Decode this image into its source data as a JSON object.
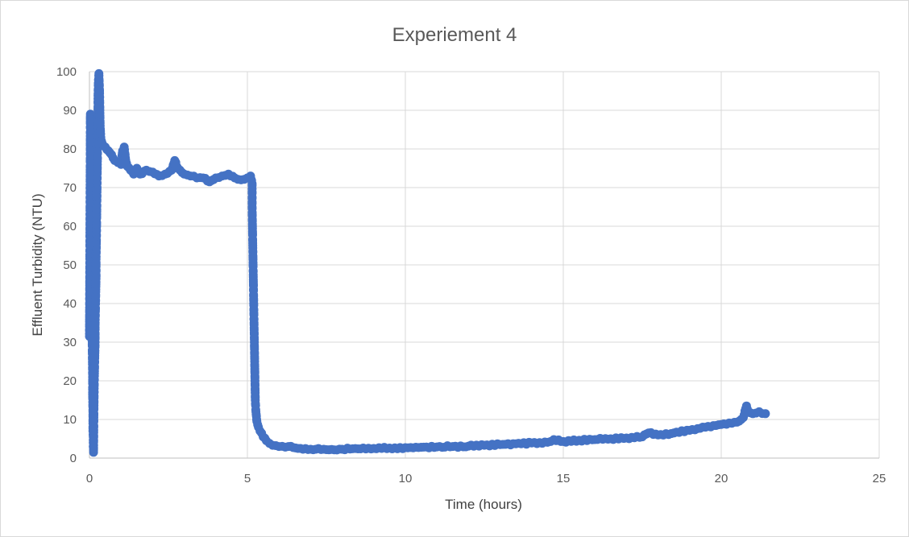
{
  "chart_data": {
    "type": "scatter",
    "title": "Experiement 4",
    "xlabel": "Time (hours)",
    "ylabel": "Effluent Turbidity (NTU)",
    "xlim": [
      0,
      25
    ],
    "ylim": [
      0,
      100
    ],
    "xticks": [
      0,
      5,
      10,
      15,
      20,
      25
    ],
    "yticks": [
      0,
      10,
      20,
      30,
      40,
      50,
      60,
      70,
      80,
      90,
      100
    ],
    "grid": true,
    "legend": "none",
    "marker_color": "#4472c4",
    "series": [
      {
        "points": [
          [
            0.0,
            31.5
          ],
          [
            0.03,
            89.0
          ],
          [
            0.04,
            68.5
          ],
          [
            0.05,
            53.5
          ],
          [
            0.06,
            45.5
          ],
          [
            0.07,
            39.0
          ],
          [
            0.08,
            33.5
          ],
          [
            0.09,
            27.5
          ],
          [
            0.1,
            21.0
          ],
          [
            0.1,
            16.5
          ],
          [
            0.11,
            12.0
          ],
          [
            0.11,
            7.0
          ],
          [
            0.12,
            5.5
          ],
          [
            0.12,
            4.0
          ],
          [
            0.12,
            3.0
          ],
          [
            0.13,
            2.0
          ],
          [
            0.13,
            1.5
          ],
          [
            0.14,
            10.5
          ],
          [
            0.15,
            18.0
          ],
          [
            0.16,
            22.5
          ],
          [
            0.17,
            26.5
          ],
          [
            0.18,
            30.0
          ],
          [
            0.18,
            34.5
          ],
          [
            0.19,
            38.5
          ],
          [
            0.2,
            43.0
          ],
          [
            0.21,
            47.0
          ],
          [
            0.21,
            51.5
          ],
          [
            0.22,
            56.0
          ],
          [
            0.23,
            62.5
          ],
          [
            0.24,
            69.5
          ],
          [
            0.25,
            76.0
          ],
          [
            0.26,
            82.5
          ],
          [
            0.27,
            88.0
          ],
          [
            0.27,
            93.0
          ],
          [
            0.28,
            97.0
          ],
          [
            0.3,
            99.5
          ],
          [
            0.32,
            95.0
          ],
          [
            0.33,
            90.0
          ],
          [
            0.34,
            86.0
          ],
          [
            0.36,
            83.0
          ],
          [
            0.4,
            81.5
          ],
          [
            0.5,
            80.5
          ],
          [
            0.6,
            79.5
          ],
          [
            0.7,
            78.5
          ],
          [
            0.8,
            77.0
          ],
          [
            0.9,
            76.5
          ],
          [
            1.0,
            76.0
          ],
          [
            1.05,
            79.5
          ],
          [
            1.1,
            80.5
          ],
          [
            1.15,
            77.0
          ],
          [
            1.2,
            75.5
          ],
          [
            1.3,
            74.5
          ],
          [
            1.4,
            73.5
          ],
          [
            1.5,
            75.0
          ],
          [
            1.6,
            73.5
          ],
          [
            1.8,
            74.5
          ],
          [
            2.0,
            74.0
          ],
          [
            2.2,
            73.0
          ],
          [
            2.4,
            73.5
          ],
          [
            2.6,
            74.5
          ],
          [
            2.7,
            77.0
          ],
          [
            2.8,
            75.0
          ],
          [
            3.0,
            73.5
          ],
          [
            3.2,
            73.0
          ],
          [
            3.4,
            72.5
          ],
          [
            3.6,
            72.5
          ],
          [
            3.8,
            71.5
          ],
          [
            4.0,
            72.5
          ],
          [
            4.2,
            73.0
          ],
          [
            4.4,
            73.5
          ],
          [
            4.6,
            72.5
          ],
          [
            4.8,
            72.0
          ],
          [
            5.0,
            72.5
          ],
          [
            5.1,
            73.0
          ],
          [
            5.15,
            71.0
          ],
          [
            5.15,
            65.0
          ],
          [
            5.16,
            60.0
          ],
          [
            5.17,
            55.0
          ],
          [
            5.18,
            50.0
          ],
          [
            5.19,
            45.0
          ],
          [
            5.2,
            40.0
          ],
          [
            5.21,
            35.0
          ],
          [
            5.22,
            30.0
          ],
          [
            5.23,
            25.0
          ],
          [
            5.24,
            20.0
          ],
          [
            5.25,
            15.0
          ],
          [
            5.27,
            12.0
          ],
          [
            5.3,
            9.5
          ],
          [
            5.35,
            8.0
          ],
          [
            5.4,
            7.0
          ],
          [
            5.5,
            5.5
          ],
          [
            5.6,
            4.5
          ],
          [
            5.7,
            3.8
          ],
          [
            5.8,
            3.3
          ],
          [
            6.0,
            3.0
          ],
          [
            6.3,
            3.0
          ],
          [
            6.6,
            2.5
          ],
          [
            7.0,
            2.3
          ],
          [
            7.5,
            2.2
          ],
          [
            8.0,
            2.3
          ],
          [
            8.5,
            2.4
          ],
          [
            9.0,
            2.5
          ],
          [
            9.5,
            2.6
          ],
          [
            10.0,
            2.7
          ],
          [
            10.5,
            2.8
          ],
          [
            11.0,
            2.9
          ],
          [
            11.5,
            3.0
          ],
          [
            12.0,
            3.1
          ],
          [
            12.5,
            3.3
          ],
          [
            13.0,
            3.5
          ],
          [
            13.5,
            3.7
          ],
          [
            14.0,
            3.9
          ],
          [
            14.5,
            4.1
          ],
          [
            14.7,
            4.8
          ],
          [
            15.0,
            4.3
          ],
          [
            15.5,
            4.6
          ],
          [
            16.0,
            4.8
          ],
          [
            16.5,
            5.0
          ],
          [
            17.0,
            5.2
          ],
          [
            17.5,
            5.5
          ],
          [
            17.7,
            6.5
          ],
          [
            18.0,
            6.0
          ],
          [
            18.5,
            6.5
          ],
          [
            19.0,
            7.2
          ],
          [
            19.5,
            8.0
          ],
          [
            20.0,
            8.7
          ],
          [
            20.5,
            9.3
          ],
          [
            20.7,
            10.5
          ],
          [
            20.8,
            13.5
          ],
          [
            20.85,
            12.0
          ],
          [
            21.0,
            11.5
          ],
          [
            21.2,
            12.0
          ],
          [
            21.4,
            11.5
          ]
        ]
      }
    ]
  }
}
